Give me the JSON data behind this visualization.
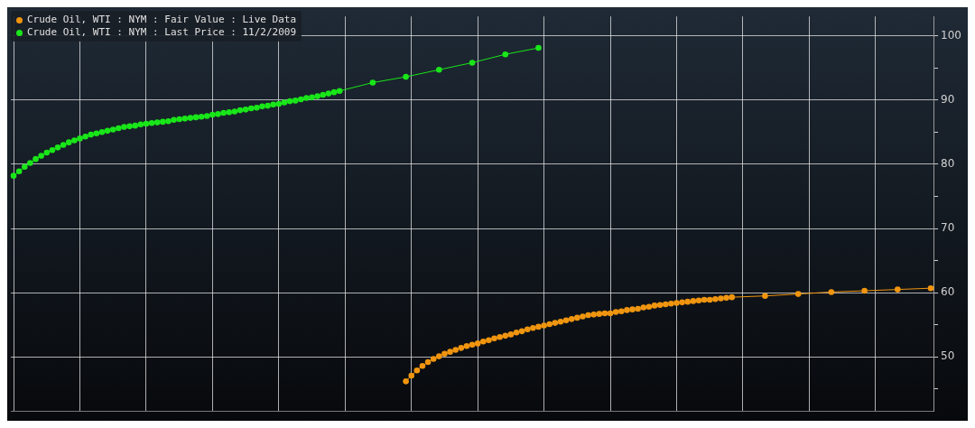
{
  "chart_data": {
    "type": "line",
    "categories": [
      null,
      null,
      null,
      null,
      null,
      null,
      null,
      null,
      null,
      null,
      null,
      null,
      null,
      null,
      null,
      null,
      null,
      null,
      null,
      null,
      null,
      null,
      null,
      null,
      null,
      null,
      null,
      null,
      null,
      null,
      null,
      null,
      null,
      null,
      null,
      null,
      null,
      null,
      null,
      null,
      null,
      null,
      null,
      null,
      null,
      null,
      null,
      null,
      null,
      null,
      null,
      null,
      null,
      null,
      null,
      null,
      null,
      null,
      null,
      null,
      null,
      null,
      null,
      null,
      null,
      null,
      null,
      null,
      null,
      null,
      null,
      null,
      null,
      null,
      null,
      null,
      null,
      null,
      null,
      null,
      null,
      null,
      null,
      null,
      null,
      null,
      null,
      null,
      null,
      null,
      null,
      null,
      null,
      null,
      null,
      null,
      null,
      null,
      null,
      null,
      null,
      null,
      null,
      null,
      null,
      null,
      null,
      null,
      null,
      null,
      null,
      null,
      null,
      null,
      null,
      null,
      null,
      null,
      null,
      null,
      null,
      null,
      null,
      null,
      null,
      null,
      null,
      null,
      null,
      null,
      null,
      null,
      null,
      null,
      null,
      null,
      null,
      null,
      null,
      null,
      null,
      null,
      null,
      null,
      null,
      null,
      null,
      null,
      null,
      null,
      null,
      null,
      null,
      null,
      null,
      null,
      null,
      null,
      null,
      null,
      null,
      null,
      null,
      null,
      null,
      null,
      null
    ],
    "series": [
      {
        "name": "Crude Oil, WTI : NYM : Fair Value : Live Data",
        "color": "#f0950f",
        "values": [
          null,
          null,
          null,
          null,
          null,
          null,
          null,
          null,
          null,
          null,
          null,
          null,
          null,
          null,
          null,
          null,
          null,
          null,
          null,
          null,
          null,
          null,
          null,
          null,
          null,
          null,
          null,
          null,
          null,
          null,
          null,
          null,
          null,
          null,
          null,
          null,
          null,
          null,
          null,
          null,
          null,
          null,
          null,
          null,
          null,
          null,
          null,
          null,
          null,
          null,
          null,
          null,
          null,
          null,
          null,
          null,
          null,
          null,
          null,
          null,
          null,
          null,
          null,
          null,
          null,
          null,
          null,
          null,
          null,
          null,
          null,
          46.2,
          47.1,
          47.9,
          48.6,
          49.2,
          49.7,
          50.1,
          50.5,
          50.8,
          51.1,
          51.4,
          51.7,
          51.9,
          52.1,
          52.4,
          52.6,
          52.9,
          53.1,
          53.3,
          53.5,
          53.8,
          54.0,
          54.3,
          54.5,
          54.7,
          54.9,
          55.1,
          55.3,
          55.5,
          55.7,
          55.9,
          56.1,
          56.3,
          56.5,
          56.6,
          56.7,
          56.8,
          56.8,
          57.0,
          57.1,
          57.3,
          57.4,
          57.5,
          57.7,
          57.8,
          58.0,
          58.1,
          58.2,
          58.3,
          58.4,
          58.5,
          58.6,
          58.7,
          58.8,
          58.9,
          58.9,
          59.0,
          59.1,
          59.2,
          59.3,
          null,
          null,
          null,
          null,
          null,
          59.5,
          null,
          null,
          null,
          null,
          null,
          59.8,
          null,
          null,
          null,
          null,
          null,
          60.1,
          null,
          null,
          null,
          null,
          null,
          60.3,
          null,
          null,
          null,
          null,
          null,
          60.5,
          null,
          null,
          null,
          null,
          null,
          60.7
        ]
      },
      {
        "name": "Crude Oil, WTI : NYM : Last Price : 11/2/2009",
        "color": "#19e619",
        "values": [
          78.2,
          78.9,
          79.6,
          80.2,
          80.8,
          81.3,
          81.8,
          82.2,
          82.6,
          83.0,
          83.4,
          83.7,
          84.0,
          84.3,
          84.6,
          84.8,
          85.0,
          85.2,
          85.4,
          85.6,
          85.8,
          85.9,
          86.0,
          86.2,
          86.3,
          86.4,
          86.5,
          86.6,
          86.7,
          86.9,
          87.0,
          87.1,
          87.2,
          87.3,
          87.4,
          87.5,
          87.7,
          87.8,
          88.0,
          88.1,
          88.2,
          88.4,
          88.5,
          88.7,
          88.8,
          89.0,
          89.1,
          89.3,
          89.4,
          89.6,
          89.8,
          89.9,
          90.1,
          90.3,
          90.4,
          90.6,
          90.8,
          91.0,
          91.2,
          91.4,
          null,
          null,
          null,
          null,
          null,
          92.7,
          null,
          null,
          null,
          null,
          null,
          93.6,
          null,
          null,
          null,
          null,
          null,
          94.7,
          null,
          null,
          null,
          null,
          null,
          95.8,
          null,
          null,
          null,
          null,
          null,
          97.1,
          null,
          null,
          null,
          null,
          null,
          98.1,
          null,
          null,
          null,
          null,
          null,
          null,
          null,
          null,
          null,
          null,
          null,
          null,
          null,
          null,
          null,
          null,
          null,
          null,
          null,
          null,
          null,
          null,
          null,
          null,
          null,
          null,
          null,
          null,
          null,
          null,
          null,
          null,
          null,
          null,
          null,
          null,
          null,
          null,
          null,
          null,
          null,
          null,
          null,
          null,
          null,
          null,
          null,
          null,
          null,
          null,
          null,
          null,
          null,
          null,
          null,
          null,
          null,
          null,
          null,
          null,
          null,
          null,
          null,
          null,
          null,
          null,
          null,
          null,
          null,
          null,
          null
        ]
      }
    ],
    "ylim": [
      41.5,
      103
    ],
    "yticks": [
      {
        "value": 45,
        "label": null
      },
      50,
      {
        "value": 55,
        "label": null
      },
      60,
      {
        "value": 65,
        "label": null
      },
      70,
      {
        "value": 75,
        "label": null
      },
      80,
      {
        "value": 85,
        "label": null
      },
      90,
      {
        "value": 95,
        "label": null
      },
      100
    ],
    "grid": true,
    "legend": "top left",
    "marker": "circle",
    "line_style": "solid",
    "tick_labels": "y"
  }
}
